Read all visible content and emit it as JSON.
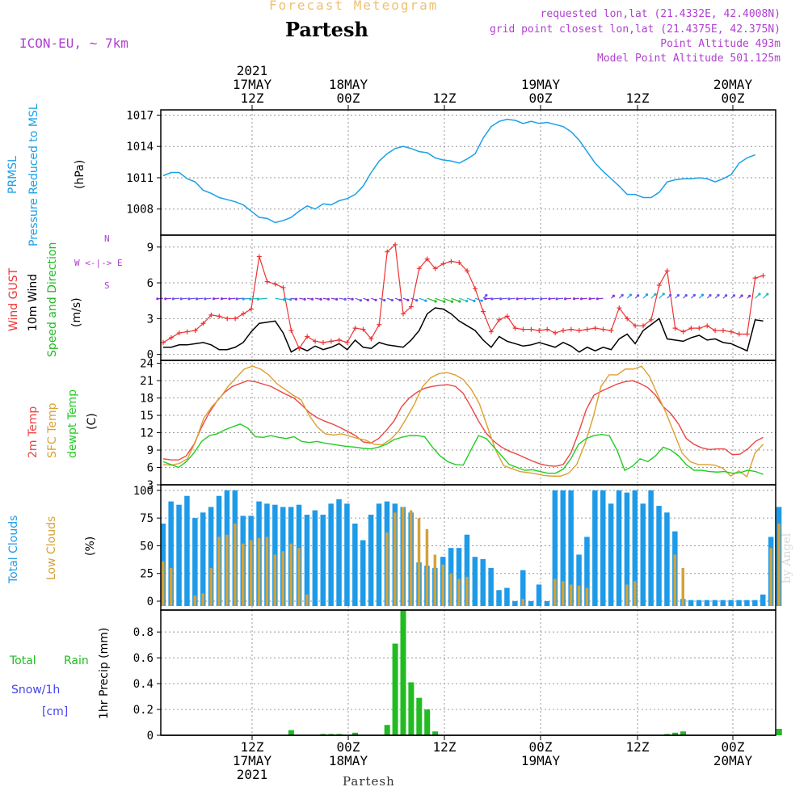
{
  "header": {
    "title_overlay": "Forecast Meteogram",
    "location": "Partesh",
    "model": "ICON-EU, ~ 7km",
    "requested": "requested lon,lat (21.4332E, 42.4008N)",
    "grid_point": "grid point closest lon,lat (21.4375E, 42.375N)",
    "point_altitude": "Point Altitude 493m",
    "model_altitude": "Model Point Altitude 501.125m",
    "footer_location": "Partesh",
    "watermark": "by Angel"
  },
  "colors": {
    "pressure": "#1aa0e8",
    "gust": "#ee3333",
    "wind": "#000000",
    "wind_dir": "#22bb22",
    "temp2m": "#ee4444",
    "sfc_temp": "#dda030",
    "dewpt": "#22cc22",
    "total_clouds": "#1e9be8",
    "low_clouds": "#d4a23a",
    "rain": "#22bb22",
    "snow": "#4444ee",
    "label_purple": "#b040d0",
    "title_orange": "#f0c070"
  },
  "time_axis": {
    "top_ticks": [
      {
        "lines": [
          "2021",
          "17MAY",
          "12Z"
        ]
      },
      {
        "lines": [
          "18MAY",
          "00Z"
        ]
      },
      {
        "lines": [
          "12Z"
        ]
      },
      {
        "lines": [
          "19MAY",
          "00Z"
        ]
      },
      {
        "lines": [
          "12Z"
        ]
      },
      {
        "lines": [
          "20MAY",
          "00Z"
        ]
      }
    ],
    "bottom_ticks": [
      {
        "lines": [
          "12Z",
          "17MAY",
          "2021"
        ]
      },
      {
        "lines": [
          "00Z",
          "18MAY"
        ]
      },
      {
        "lines": [
          "12Z"
        ]
      },
      {
        "lines": [
          "00Z",
          "19MAY"
        ]
      },
      {
        "lines": [
          "12Z"
        ]
      },
      {
        "lines": [
          "00Z",
          "20MAY"
        ]
      }
    ]
  },
  "panel_labels": {
    "pressure": {
      "a": "PRMSL",
      "b": "Pressure Reduced to MSL",
      "unit": "(hPa)"
    },
    "wind": {
      "a": "Wind GUST",
      "b": "10m Wind",
      "c": "Speed and Direction",
      "unit": "(m/s)",
      "compass_n": "N",
      "compass_s": "S",
      "compass_we": "W <-|-> E"
    },
    "temp": {
      "a": "2m Temp",
      "b": "SFC Temp",
      "c": "dewpt Temp",
      "unit": "(C)"
    },
    "clouds": {
      "a": "Total Clouds",
      "b": "Low Clouds",
      "unit": "(%)"
    },
    "precip": {
      "a": "Total",
      "a2": "Rain",
      "b": "Snow/1h",
      "c": "[cm]",
      "unit": "1hr Precip (mm)"
    }
  },
  "chart_data": [
    {
      "type": "line",
      "name": "pressure",
      "title": "PRMSL Pressure Reduced to MSL",
      "ylabel": "(hPa)",
      "x_hours_from_start": "0..76 (17MAY 01Z to 20MAY 05Z, 1h steps); 12Z 17MAY at x=11",
      "ylim": [
        1005.5,
        1017.5
      ],
      "yticks": [
        1008,
        1011,
        1014,
        1017
      ],
      "series": [
        {
          "name": "PRMSL",
          "values": [
            1011.2,
            1011.5,
            1011.5,
            1010.9,
            1010.6,
            1009.8,
            1009.5,
            1009.1,
            1008.9,
            1008.7,
            1008.4,
            1007.8,
            1007.2,
            1007.1,
            1006.7,
            1006.9,
            1007.2,
            1007.8,
            1008.3,
            1008.0,
            1008.5,
            1008.4,
            1008.8,
            1009.0,
            1009.4,
            1010.2,
            1011.5,
            1012.6,
            1013.3,
            1013.8,
            1014.0,
            1013.8,
            1013.5,
            1013.4,
            1012.9,
            1012.7,
            1012.6,
            1012.4,
            1012.8,
            1013.3,
            1014.8,
            1015.9,
            1016.4,
            1016.6,
            1016.5,
            1016.2,
            1016.4,
            1016.2,
            1016.3,
            1016.1,
            1015.9,
            1015.4,
            1014.6,
            1013.5,
            1012.4,
            1011.6,
            1010.9,
            1010.2,
            1009.4,
            1009.4,
            1009.1,
            1009.1,
            1009.6,
            1010.6,
            1010.8,
            1010.9,
            1010.9,
            1011.0,
            1010.9,
            1010.6,
            1010.9,
            1011.3,
            1012.4,
            1012.9,
            1013.2
          ]
        }
      ]
    },
    {
      "type": "line",
      "name": "wind",
      "title": "Wind GUST, 10m Wind Speed and Direction",
      "ylabel": "(m/s)",
      "ylim": [
        -0.5,
        10
      ],
      "yticks": [
        0,
        3,
        6,
        9
      ],
      "series": [
        {
          "name": "Wind GUST",
          "values": [
            1.0,
            1.4,
            1.8,
            1.9,
            2.0,
            2.6,
            3.3,
            3.2,
            3.0,
            3.0,
            3.4,
            3.8,
            8.2,
            6.1,
            5.9,
            5.6,
            2.0,
            0.5,
            1.5,
            1.1,
            1.0,
            1.1,
            1.2,
            1.0,
            2.2,
            2.1,
            1.3,
            2.5,
            8.6,
            9.2,
            3.4,
            4.0,
            7.2,
            8.0,
            7.2,
            7.6,
            7.8,
            7.7,
            7.0,
            5.5,
            3.6,
            1.9,
            2.9,
            3.2,
            2.2,
            2.1,
            2.1,
            2.0,
            2.1,
            1.8,
            2.0,
            2.1,
            2.0,
            2.1,
            2.2,
            2.1,
            2.0,
            3.9,
            3.0,
            2.4,
            2.4,
            2.9,
            5.8,
            7.0,
            2.2,
            1.9,
            2.2,
            2.2,
            2.4,
            2.0,
            2.0,
            1.9,
            1.7,
            1.7,
            6.4,
            6.6
          ]
        },
        {
          "name": "10m Wind",
          "values": [
            0.6,
            0.6,
            0.8,
            0.8,
            0.9,
            1.0,
            0.8,
            0.4,
            0.4,
            0.6,
            1.0,
            1.9,
            2.6,
            2.7,
            2.8,
            1.8,
            0.2,
            0.6,
            0.3,
            0.7,
            0.4,
            0.6,
            0.9,
            0.4,
            1.2,
            0.6,
            0.5,
            1.0,
            0.8,
            0.7,
            0.6,
            1.2,
            2.0,
            3.4,
            3.9,
            3.8,
            3.4,
            2.8,
            2.4,
            2.0,
            1.2,
            0.6,
            1.5,
            1.1,
            0.9,
            0.7,
            0.8,
            1.0,
            0.8,
            0.6,
            1.0,
            0.7,
            0.2,
            0.6,
            0.3,
            0.6,
            0.4,
            1.3,
            1.7,
            0.9,
            2.0,
            2.5,
            3.0,
            1.3,
            1.2,
            1.1,
            1.4,
            1.6,
            1.2,
            1.3,
            1.0,
            0.9,
            0.6,
            0.3,
            2.9,
            2.8
          ]
        }
      ],
      "wind_arrows": "direction arrows drawn at ~4.7 m/s, colors vary by speed"
    },
    {
      "type": "line",
      "name": "temperature",
      "title": "2m Temp, SFC Temp, dewpt Temp",
      "ylabel": "(C)",
      "ylim": [
        3,
        24.5
      ],
      "yticks": [
        3,
        6,
        9,
        12,
        15,
        18,
        21,
        24
      ],
      "series": [
        {
          "name": "2m Temp",
          "values": [
            7.5,
            7.3,
            7.3,
            8.0,
            10.0,
            13.0,
            15.5,
            17.5,
            19.0,
            20.0,
            20.5,
            21.0,
            20.8,
            20.4,
            20.0,
            19.3,
            18.6,
            18.0,
            16.8,
            15.5,
            14.6,
            14.0,
            13.5,
            12.9,
            12.2,
            11.5,
            10.4,
            10.2,
            11.0,
            12.4,
            14.0,
            16.5,
            18.0,
            19.0,
            19.7,
            20.0,
            20.2,
            20.3,
            20.0,
            18.8,
            16.5,
            14.0,
            11.9,
            10.5,
            9.5,
            8.8,
            8.3,
            7.7,
            7.1,
            6.6,
            6.3,
            6.2,
            6.5,
            8.5,
            12.0,
            16.0,
            18.5,
            19.2,
            19.8,
            20.4,
            20.8,
            21.0,
            20.5,
            19.8,
            18.5,
            16.5,
            15.3,
            13.5,
            11.0,
            10.0,
            9.4,
            9.1,
            9.2,
            9.2,
            8.2,
            8.3,
            9.2,
            10.5,
            11.2
          ]
        },
        {
          "name": "SFC Temp",
          "values": [
            6.5,
            6.4,
            6.7,
            7.5,
            10.5,
            14.5,
            16.5,
            18.0,
            20.0,
            21.5,
            23.0,
            23.5,
            23.0,
            22.0,
            20.5,
            19.5,
            18.5,
            17.7,
            15.0,
            13.0,
            11.8,
            11.6,
            11.8,
            11.4,
            11.0,
            10.7,
            10.0,
            9.9,
            10.8,
            12.2,
            14.5,
            17.0,
            20.0,
            21.5,
            22.2,
            22.4,
            22.0,
            21.2,
            19.5,
            17.0,
            13.0,
            9.0,
            6.3,
            5.8,
            5.3,
            5.1,
            4.9,
            4.6,
            4.5,
            4.5,
            5.0,
            6.5,
            10.0,
            14.5,
            20.0,
            22.0,
            22.0,
            23.0,
            23.0,
            23.5,
            21.7,
            18.5,
            15.5,
            12.0,
            8.5,
            7.0,
            6.5,
            6.5,
            6.4,
            5.9,
            4.5,
            5.4,
            4.4,
            8.5,
            10.0
          ]
        },
        {
          "name": "dewpt Temp",
          "values": [
            7.0,
            6.5,
            6.0,
            7.0,
            8.5,
            10.5,
            11.5,
            11.8,
            12.5,
            13.0,
            13.5,
            12.8,
            11.3,
            11.2,
            11.5,
            11.2,
            11.0,
            11.3,
            10.5,
            10.3,
            10.5,
            10.2,
            10.0,
            9.8,
            9.6,
            9.5,
            9.3,
            9.2,
            9.5,
            10.0,
            10.8,
            11.2,
            11.5,
            11.5,
            11.3,
            9.5,
            8.0,
            7.0,
            6.5,
            6.4,
            9.0,
            11.5,
            11.0,
            9.5,
            8.0,
            6.5,
            6.0,
            5.5,
            5.6,
            5.3,
            5.0,
            5.0,
            5.7,
            7.5,
            10.0,
            11.0,
            11.5,
            11.7,
            11.5,
            9.0,
            5.5,
            6.2,
            7.5,
            7.0,
            8.0,
            9.5,
            9.0,
            8.0,
            6.5,
            5.5,
            5.5,
            5.3,
            5.2,
            5.3,
            5.0,
            5.1,
            5.5,
            5.3,
            4.8
          ]
        }
      ]
    },
    {
      "type": "bar",
      "name": "clouds",
      "title": "Total Clouds, Low Clouds",
      "ylabel": "(%)",
      "ylim": [
        -8,
        105
      ],
      "yticks": [
        0,
        25,
        50,
        75,
        100
      ],
      "series": [
        {
          "name": "Total Clouds",
          "values": [
            70,
            90,
            87,
            95,
            75,
            80,
            85,
            95,
            100,
            100,
            77,
            77,
            90,
            88,
            87,
            85,
            85,
            87,
            78,
            82,
            78,
            88,
            92,
            88,
            70,
            55,
            78,
            88,
            90,
            88,
            85,
            80,
            35,
            32,
            30,
            40,
            48,
            48,
            60,
            40,
            38,
            30,
            10,
            12,
            0,
            28,
            0,
            15,
            0,
            100,
            100,
            100,
            42,
            58,
            100,
            100,
            88,
            100,
            98,
            100,
            88,
            100,
            86,
            80,
            63,
            2,
            1,
            1,
            1,
            1,
            1,
            1,
            1,
            1,
            1,
            6,
            58,
            85
          ]
        },
        {
          "name": "Low Clouds",
          "values": [
            36,
            30,
            0,
            0,
            5,
            7,
            30,
            58,
            60,
            70,
            52,
            55,
            57,
            58,
            42,
            45,
            52,
            48,
            6,
            0,
            0,
            0,
            0,
            0,
            0,
            0,
            0,
            0,
            62,
            80,
            85,
            82,
            75,
            65,
            42,
            33,
            25,
            20,
            22,
            0,
            0,
            0,
            0,
            0,
            0,
            2,
            0,
            0,
            0,
            20,
            18,
            15,
            14,
            12,
            0,
            0,
            0,
            0,
            15,
            18,
            0,
            0,
            0,
            0,
            42,
            30,
            0,
            0,
            0,
            0,
            0,
            0,
            0,
            0,
            0,
            0,
            48,
            70
          ]
        }
      ]
    },
    {
      "type": "bar",
      "name": "precip",
      "title": "Total Rain, Snow/1h [cm]",
      "ylabel": "1hr Precip (mm)",
      "ylim": [
        0,
        0.97
      ],
      "yticks": [
        0,
        0.2,
        0.4,
        0.6,
        0.8
      ],
      "series": [
        {
          "name": "Total Rain",
          "values": [
            0,
            0,
            0,
            0,
            0,
            0,
            0,
            0,
            0,
            0,
            0,
            0,
            0,
            0,
            0,
            0,
            0.04,
            0,
            0,
            0,
            0.01,
            0.01,
            0.01,
            0,
            0.02,
            0,
            0,
            0,
            0.08,
            0.71,
            0.97,
            0.41,
            0.29,
            0.2,
            0.03,
            0,
            0,
            0,
            0,
            0,
            0,
            0,
            0,
            0,
            0,
            0,
            0,
            0,
            0,
            0,
            0,
            0,
            0,
            0,
            0,
            0,
            0,
            0,
            0,
            0,
            0,
            0,
            0,
            0.01,
            0.02,
            0.03,
            0,
            0,
            0,
            0,
            0,
            0,
            0,
            0,
            0,
            0,
            0,
            0.05
          ]
        }
      ]
    }
  ]
}
